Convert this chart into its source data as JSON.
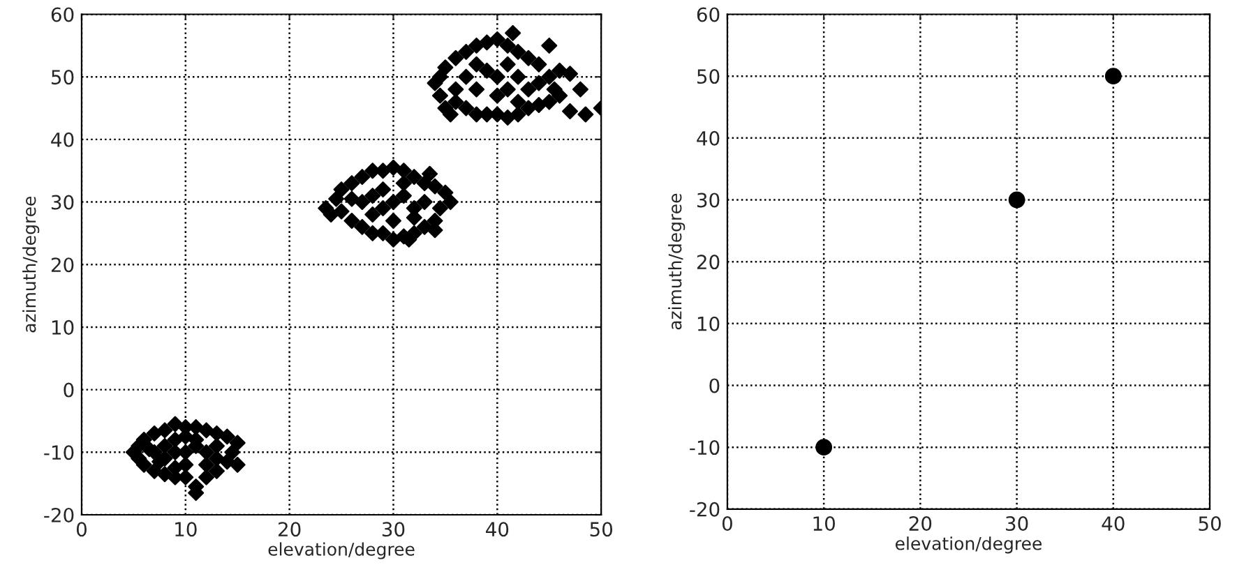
{
  "chart_data": [
    {
      "type": "scatter",
      "xlabel": "elevation/degree",
      "ylabel": "azimuth/degree",
      "xlim": [
        0,
        50
      ],
      "ylim": [
        -20,
        60
      ],
      "xticks": [
        0,
        10,
        20,
        30,
        40,
        50
      ],
      "yticks": [
        -20,
        -10,
        0,
        10,
        20,
        30,
        40,
        50,
        60
      ],
      "grid": true,
      "marker": "diamond",
      "series": [
        {
          "color": "#000000",
          "x": [
            5,
            5.5,
            6,
            7,
            8,
            9,
            10,
            11,
            12,
            13,
            14,
            15,
            14.5,
            15,
            14,
            13,
            12,
            11,
            10,
            9,
            8,
            7,
            6,
            5.5,
            7,
            8,
            9,
            10,
            11,
            12,
            13,
            8,
            10,
            12,
            9,
            11,
            11,
            6.5,
            13,
            9,
            10,
            7.5,
            23.5,
            24,
            24.5,
            25,
            26,
            27,
            28,
            29,
            30,
            31,
            32,
            33,
            34,
            35,
            35.5,
            34.5,
            34,
            33,
            32,
            31,
            30,
            29,
            28,
            27,
            26,
            25,
            27,
            28,
            29,
            30,
            31,
            32,
            33,
            28,
            30,
            32,
            29,
            31,
            26,
            33.5,
            31.5,
            34,
            34,
            34.5,
            35,
            35.5,
            36,
            37,
            38,
            39,
            40,
            41,
            42,
            43,
            44,
            45,
            45.5,
            45,
            44,
            43,
            42,
            41,
            40,
            39,
            38,
            37,
            36,
            35,
            34.5,
            37,
            38,
            39,
            40,
            41,
            42,
            43,
            40,
            38,
            41,
            36,
            42,
            44,
            46,
            47,
            48,
            48.5,
            47,
            50,
            41.5,
            45,
            46
          ],
          "values": [
            -10,
            -9,
            -8,
            -7,
            -6.5,
            -5.5,
            -6,
            -6,
            -6.5,
            -7,
            -7.5,
            -8.5,
            -10,
            -12,
            -11.5,
            -13,
            -14,
            -15.5,
            -14,
            -14,
            -13.5,
            -13,
            -12,
            -11,
            -10,
            -9,
            -10,
            -10,
            -9,
            -10,
            -9,
            -11,
            -12,
            -12,
            -8,
            -8,
            -16.5,
            -9.5,
            -11,
            -12.5,
            -7.5,
            -11.5,
            29,
            28,
            30.5,
            32,
            33,
            34,
            35,
            35,
            35.5,
            35,
            34,
            33,
            32.5,
            31.5,
            30,
            29,
            27,
            26,
            25,
            24.5,
            24,
            25,
            25,
            26,
            27,
            28.5,
            30,
            31,
            29,
            30,
            31,
            29,
            30,
            28,
            27,
            27.5,
            32,
            33,
            30.5,
            34.5,
            24,
            25.5,
            49,
            47,
            45,
            44,
            46,
            45,
            44,
            44,
            44,
            43.5,
            44,
            45,
            45.5,
            46,
            48,
            50,
            52,
            53,
            54,
            55,
            56,
            55.5,
            55,
            54,
            53,
            51.5,
            50,
            50,
            48,
            51,
            50,
            48,
            50,
            48,
            47,
            52,
            52,
            48,
            46,
            49,
            51,
            50.5,
            48,
            44,
            44.5,
            45,
            57,
            55,
            47
          ]
        }
      ]
    },
    {
      "type": "scatter",
      "xlabel": "elevation/degree",
      "ylabel": "azimuth/degree",
      "xlim": [
        0,
        50
      ],
      "ylim": [
        -20,
        60
      ],
      "xticks": [
        0,
        10,
        20,
        30,
        40,
        50
      ],
      "yticks": [
        -20,
        -10,
        0,
        10,
        20,
        30,
        40,
        50,
        60
      ],
      "grid": true,
      "marker": "circle",
      "series": [
        {
          "color": "#000000",
          "x": [
            10,
            30,
            40
          ],
          "values": [
            -10,
            30,
            50
          ]
        }
      ]
    }
  ]
}
